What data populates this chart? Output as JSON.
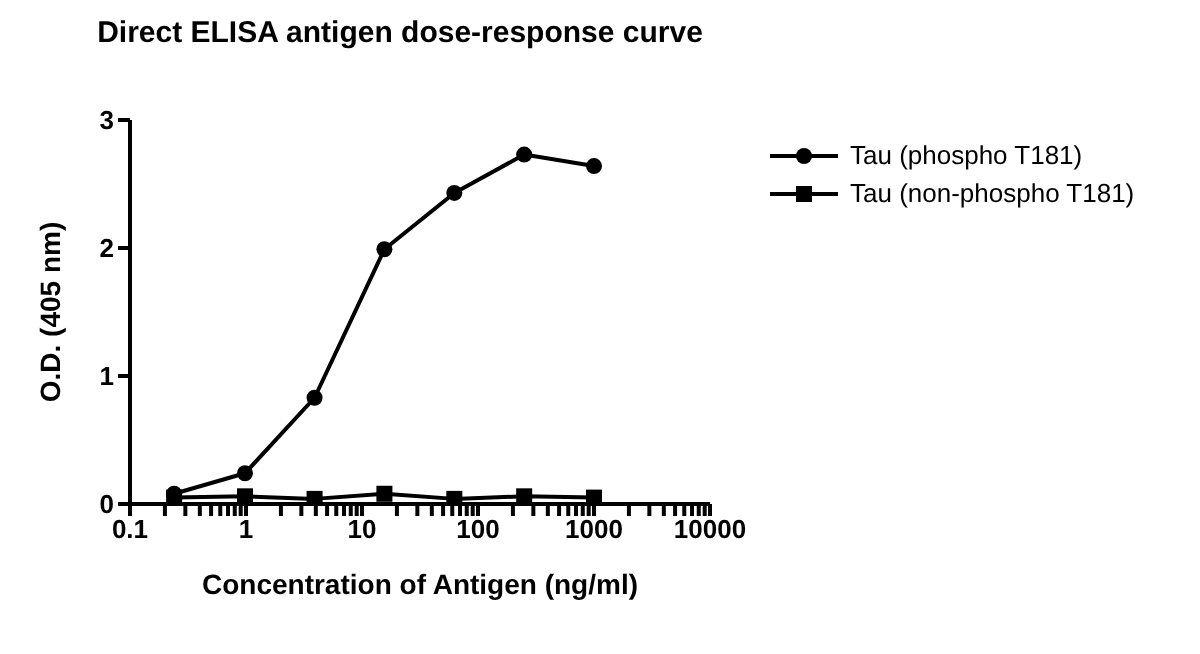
{
  "chart_data": {
    "type": "line",
    "title": "Direct ELISA antigen dose-response curve",
    "xlabel": "Concentration of Antigen (ng/ml)",
    "ylabel": "O.D. (405 nm)",
    "log": "x",
    "xlim": [
      0.1,
      10000
    ],
    "xticks": [
      0.1,
      {
        "value": 0.2,
        "label": null
      },
      {
        "value": 0.3,
        "label": null
      },
      {
        "value": 0.4,
        "label": null
      },
      {
        "value": 0.5,
        "label": null
      },
      {
        "value": 0.6,
        "label": null
      },
      {
        "value": 0.7,
        "label": null
      },
      {
        "value": 0.8,
        "label": null
      },
      {
        "value": 0.9,
        "label": null
      },
      1,
      {
        "value": 2,
        "label": null
      },
      {
        "value": 3,
        "label": null
      },
      {
        "value": 4,
        "label": null
      },
      {
        "value": 5,
        "label": null
      },
      {
        "value": 6,
        "label": null
      },
      {
        "value": 7,
        "label": null
      },
      {
        "value": 8,
        "label": null
      },
      {
        "value": 9,
        "label": null
      },
      10,
      {
        "value": 20,
        "label": null
      },
      {
        "value": 30,
        "label": null
      },
      {
        "value": 40,
        "label": null
      },
      {
        "value": 50,
        "label": null
      },
      {
        "value": 60,
        "label": null
      },
      {
        "value": 70,
        "label": null
      },
      {
        "value": 80,
        "label": null
      },
      {
        "value": 90,
        "label": null
      },
      100,
      {
        "value": 200,
        "label": null
      },
      {
        "value": 300,
        "label": null
      },
      {
        "value": 400,
        "label": null
      },
      {
        "value": 500,
        "label": null
      },
      {
        "value": 600,
        "label": null
      },
      {
        "value": 700,
        "label": null
      },
      {
        "value": 800,
        "label": null
      },
      {
        "value": 900,
        "label": null
      },
      1000,
      {
        "value": 2000,
        "label": null
      },
      {
        "value": 3000,
        "label": null
      },
      {
        "value": 4000,
        "label": null
      },
      {
        "value": 5000,
        "label": null
      },
      {
        "value": 6000,
        "label": null
      },
      {
        "value": 7000,
        "label": null
      },
      {
        "value": 8000,
        "label": null
      },
      {
        "value": 9000,
        "label": null
      },
      10000
    ],
    "ylim": [
      0,
      3
    ],
    "yticks": [
      0,
      1,
      2,
      3
    ],
    "grid": false,
    "legend": "right",
    "line_style": "solid",
    "x": [
      0.24,
      0.98,
      3.9,
      15.6,
      62.5,
      250,
      1000
    ],
    "series": [
      {
        "name": "Tau (phospho T181)",
        "color": "#000000",
        "marker": "circle",
        "values": [
          0.08,
          0.24,
          0.83,
          1.99,
          2.43,
          2.73,
          2.64
        ]
      },
      {
        "name": "Tau (non-phospho T181)",
        "color": "#000000",
        "marker": "square",
        "values": [
          0.05,
          0.06,
          0.04,
          0.08,
          0.04,
          0.06,
          0.05
        ]
      }
    ]
  }
}
